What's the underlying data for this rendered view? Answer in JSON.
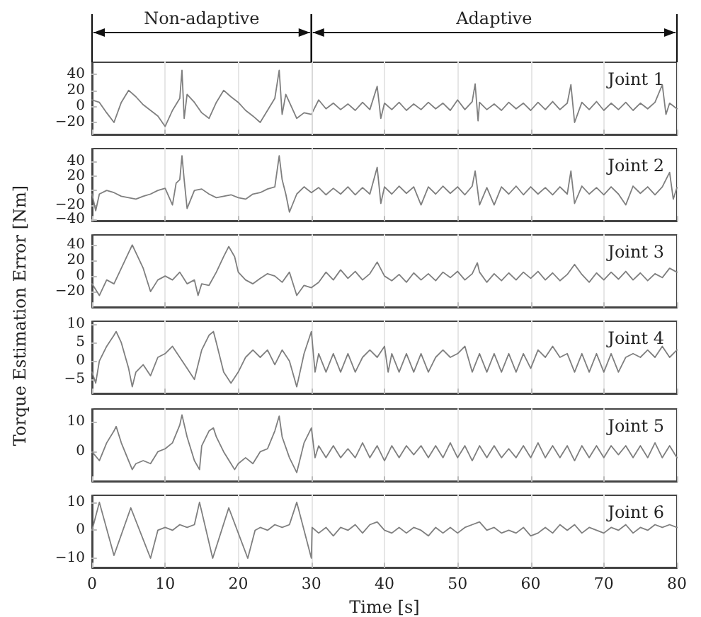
{
  "chart_data": [
    {
      "type": "line",
      "title": "Joint 1",
      "ylabel": "Torque Estimation Error [Nm]",
      "color": "#7f7f7f",
      "marker": "none",
      "grid": "x",
      "tick_labels": "y",
      "xlim": [
        0,
        80
      ],
      "xticks": [
        0,
        10,
        20,
        30,
        40,
        50,
        60,
        70,
        80
      ],
      "ylim": [
        -35,
        55
      ],
      "yticks": [
        -20,
        0,
        20,
        40
      ],
      "annotations": [
        "Non-adaptive",
        "Adaptive"
      ],
      "ref_lines": [
        {
          "axis": "x",
          "value": 30,
          "color": "#d9d9d9"
        }
      ],
      "x": [
        0,
        1,
        2,
        3,
        4,
        5,
        6,
        7,
        8,
        9,
        10,
        11,
        12,
        12.3,
        12.6,
        13,
        14,
        15,
        16,
        17,
        18,
        19,
        20,
        21,
        22,
        23,
        24,
        25,
        25.6,
        26,
        26.5,
        27,
        28,
        29,
        30,
        31,
        32,
        33,
        34,
        35,
        36,
        37,
        38,
        39,
        39.5,
        40,
        41,
        42,
        43,
        44,
        45,
        46,
        47,
        48,
        49,
        50,
        51,
        52,
        52.4,
        52.8,
        53,
        54,
        55,
        56,
        57,
        58,
        59,
        60,
        61,
        62,
        63,
        64,
        65,
        65.5,
        66,
        67,
        68,
        69,
        70,
        71,
        72,
        73,
        74,
        75,
        76,
        77,
        78,
        78.5,
        79,
        80
      ],
      "values": [
        8,
        5,
        -8,
        -20,
        5,
        20,
        12,
        2,
        -5,
        -12,
        -25,
        -5,
        10,
        45,
        -15,
        15,
        5,
        -8,
        -15,
        5,
        20,
        12,
        5,
        -5,
        -12,
        -20,
        -5,
        10,
        45,
        -10,
        15,
        5,
        -15,
        -8,
        -10,
        8,
        -3,
        4,
        -4,
        3,
        -5,
        5,
        -4,
        25,
        -15,
        4,
        -4,
        5,
        -5,
        3,
        -4,
        5,
        -3,
        4,
        -5,
        8,
        -4,
        6,
        28,
        -18,
        5,
        -4,
        3,
        -5,
        5,
        -3,
        4,
        -5,
        5,
        -4,
        6,
        -4,
        4,
        27,
        -20,
        5,
        -4,
        6,
        -5,
        4,
        -4,
        5,
        -5,
        4,
        -3,
        5,
        27,
        -10,
        4,
        -3
      ]
    },
    {
      "type": "line",
      "title": "Joint 2",
      "color": "#7f7f7f",
      "marker": "none",
      "grid": "x",
      "tick_labels": "y",
      "xlim": [
        0,
        80
      ],
      "xticks": [
        0,
        10,
        20,
        30,
        40,
        50,
        60,
        70,
        80
      ],
      "ylim": [
        -42,
        58
      ],
      "yticks": [
        -40,
        -20,
        0,
        20,
        40
      ],
      "x": [
        0,
        0.5,
        1,
        2,
        3,
        4,
        5,
        6,
        7,
        8,
        9,
        10,
        11,
        11.5,
        12,
        12.3,
        12.6,
        13,
        14,
        15,
        16,
        17,
        18,
        19,
        20,
        21,
        22,
        23,
        24,
        25,
        25.6,
        26,
        26.5,
        27,
        28,
        29,
        30,
        31,
        32,
        33,
        34,
        35,
        36,
        37,
        38,
        39,
        39.5,
        40,
        41,
        42,
        43,
        44,
        45,
        46,
        47,
        48,
        49,
        50,
        51,
        52,
        52.4,
        53,
        54,
        55,
        56,
        57,
        58,
        59,
        60,
        61,
        62,
        63,
        64,
        65,
        65.5,
        66,
        67,
        68,
        69,
        70,
        71,
        72,
        73,
        74,
        75,
        76,
        77,
        78,
        79,
        79.5,
        80
      ],
      "values": [
        -5,
        -28,
        -5,
        0,
        -3,
        -8,
        -10,
        -12,
        -8,
        -5,
        0,
        3,
        -20,
        10,
        15,
        48,
        15,
        -25,
        0,
        2,
        -5,
        -10,
        -8,
        -6,
        -10,
        -12,
        -5,
        -3,
        2,
        5,
        48,
        15,
        -5,
        -30,
        -5,
        5,
        -3,
        4,
        -6,
        3,
        -5,
        5,
        -6,
        4,
        -5,
        32,
        -18,
        5,
        -5,
        6,
        -4,
        5,
        -20,
        5,
        -5,
        6,
        -4,
        5,
        -6,
        6,
        27,
        -20,
        4,
        -20,
        5,
        -5,
        6,
        -6,
        5,
        -5,
        4,
        -6,
        5,
        -5,
        27,
        -18,
        6,
        -5,
        4,
        -6,
        5,
        -5,
        -20,
        6,
        -4,
        5,
        -6,
        5,
        25,
        -12,
        4
      ]
    },
    {
      "type": "line",
      "title": "Joint 3",
      "color": "#7f7f7f",
      "marker": "none",
      "grid": "x",
      "tick_labels": "y",
      "xlim": [
        0,
        80
      ],
      "xticks": [
        0,
        10,
        20,
        30,
        40,
        50,
        60,
        70,
        80
      ],
      "ylim": [
        -40,
        53
      ],
      "yticks": [
        -20,
        0,
        20,
        40
      ],
      "x": [
        0,
        1,
        2,
        3,
        4,
        5,
        5.5,
        6,
        7,
        8,
        9,
        10,
        11,
        12,
        13,
        14,
        14.5,
        15,
        16,
        17,
        18,
        18.7,
        19.5,
        20,
        21,
        22,
        23,
        24,
        25,
        26,
        27,
        28,
        29,
        30,
        31,
        32,
        33,
        34,
        35,
        36,
        37,
        38,
        39,
        40,
        41,
        42,
        43,
        44,
        45,
        46,
        47,
        48,
        49,
        50,
        51,
        52,
        52.7,
        53,
        54,
        55,
        56,
        57,
        58,
        59,
        60,
        61,
        62,
        63,
        64,
        65,
        66,
        67,
        68,
        69,
        70,
        71,
        72,
        73,
        74,
        75,
        76,
        77,
        78,
        79,
        80
      ],
      "values": [
        -10,
        -25,
        -5,
        -10,
        10,
        30,
        40,
        30,
        10,
        -20,
        -5,
        0,
        -5,
        5,
        -10,
        -5,
        -25,
        -10,
        -12,
        5,
        25,
        38,
        25,
        5,
        -5,
        -10,
        -3,
        3,
        0,
        -8,
        5,
        -25,
        -12,
        -15,
        -8,
        5,
        -5,
        8,
        -3,
        6,
        -5,
        3,
        18,
        0,
        -6,
        2,
        -8,
        4,
        -5,
        3,
        -6,
        5,
        -2,
        6,
        -5,
        3,
        17,
        5,
        -8,
        3,
        -6,
        4,
        -5,
        5,
        -3,
        6,
        -5,
        4,
        -6,
        2,
        15,
        2,
        -8,
        4,
        -5,
        5,
        -4,
        6,
        -5,
        4,
        -6,
        3,
        -2,
        10,
        5
      ]
    },
    {
      "type": "line",
      "title": "Joint 4",
      "color": "#7f7f7f",
      "marker": "none",
      "grid": "x",
      "tick_labels": "y",
      "xlim": [
        0,
        80
      ],
      "xticks": [
        0,
        10,
        20,
        30,
        40,
        50,
        60,
        70,
        80
      ],
      "ylim": [
        -8.8,
        10.8
      ],
      "yticks": [
        -5,
        0,
        5,
        10
      ],
      "x": [
        0,
        0.5,
        1,
        2,
        3,
        3.3,
        4,
        5,
        5.5,
        6,
        7,
        8,
        9,
        10,
        11,
        12,
        13,
        14,
        15,
        16,
        16.6,
        17,
        18,
        19,
        20,
        21,
        22,
        23,
        24,
        25,
        26,
        27,
        28,
        29,
        30,
        30.5,
        31,
        32,
        33,
        34,
        35,
        36,
        37,
        38,
        39,
        40,
        40.5,
        41,
        42,
        43,
        44,
        45,
        46,
        47,
        48,
        49,
        50,
        51,
        52,
        53,
        54,
        55,
        56,
        57,
        58,
        59,
        60,
        61,
        62,
        63,
        64,
        65,
        66,
        67,
        68,
        69,
        70,
        71,
        72,
        73,
        74,
        75,
        76,
        77,
        78,
        79,
        80
      ],
      "values": [
        -3,
        -6,
        0,
        4,
        7,
        8,
        5,
        -2,
        -7,
        -3,
        -1,
        -4,
        1,
        2,
        4,
        1,
        -2,
        -5,
        3,
        7,
        8,
        5,
        -3,
        -6,
        -3,
        1,
        3,
        1,
        3,
        -1,
        3,
        0,
        -7,
        2,
        8,
        -3,
        2,
        -3,
        2,
        -3,
        2,
        -3,
        1,
        3,
        1,
        4,
        -3,
        2,
        -3,
        2,
        -3,
        2,
        -3,
        1,
        3,
        1,
        2,
        4,
        -3,
        2,
        -3,
        2,
        -3,
        2,
        -3,
        2,
        -2,
        3,
        1,
        4,
        1,
        2,
        -3,
        2,
        -3,
        2,
        -3,
        2,
        -3,
        1,
        2,
        1,
        3,
        1,
        4,
        1,
        3
      ]
    },
    {
      "type": "line",
      "title": "Joint 5",
      "color": "#7f7f7f",
      "marker": "none",
      "grid": "x",
      "tick_labels": "y",
      "xlim": [
        0,
        80
      ],
      "xticks": [
        0,
        10,
        20,
        30,
        40,
        50,
        60,
        70,
        80
      ],
      "ylim": [
        -9.9,
        14.4
      ],
      "yticks": [
        0,
        10
      ],
      "x": [
        0,
        1,
        2,
        3,
        3.3,
        4,
        5,
        5.5,
        6,
        7,
        8,
        9,
        10,
        11,
        12,
        12.3,
        13,
        14,
        14.7,
        15,
        16,
        16.6,
        17,
        18,
        19,
        19.5,
        20,
        21,
        22,
        23,
        24,
        25,
        25.6,
        26,
        27,
        28,
        29,
        30,
        30.5,
        31,
        32,
        33,
        34,
        35,
        36,
        37,
        38,
        39,
        40,
        41,
        42,
        43,
        44,
        45,
        46,
        47,
        48,
        49,
        50,
        51,
        52,
        53,
        54,
        55,
        56,
        57,
        58,
        59,
        60,
        61,
        62,
        63,
        64,
        65,
        66,
        67,
        68,
        69,
        70,
        71,
        72,
        73,
        74,
        75,
        76,
        77,
        78,
        79,
        80
      ],
      "values": [
        0,
        -3,
        3,
        7,
        8.5,
        3,
        -3,
        -6,
        -4,
        -3,
        -4,
        0,
        1,
        3,
        9,
        12.4,
        5,
        -3,
        -6,
        2,
        7,
        8,
        5,
        0,
        -4,
        -6,
        -4,
        -2,
        -4,
        0,
        1,
        7,
        12,
        5,
        -2,
        -7,
        3,
        8,
        -2,
        2,
        -2,
        2,
        -2,
        1,
        -2,
        3,
        -2,
        2,
        -3,
        2,
        -2,
        2,
        -1,
        2,
        -2,
        2,
        -2,
        3,
        -2,
        2,
        -3,
        2,
        -2,
        2,
        -2,
        1,
        -2,
        2,
        -2,
        3,
        -2,
        2,
        -2,
        2,
        -3,
        2,
        -2,
        2,
        -2,
        2,
        -1,
        2,
        -2,
        2,
        -2,
        3,
        -2,
        2,
        -2
      ]
    },
    {
      "type": "line",
      "title": "Joint 6",
      "xlabel": "Time [s]",
      "color": "#7f7f7f",
      "marker": "none",
      "grid": "x",
      "xlim": [
        0,
        80
      ],
      "xticks": [
        0,
        10,
        20,
        30,
        40,
        50,
        60,
        70,
        80
      ],
      "ylim": [
        -13.3,
        12.5
      ],
      "yticks": [
        -10,
        0,
        10
      ],
      "x": [
        0,
        1,
        3,
        5.3,
        8,
        9,
        10,
        11,
        12,
        13,
        14,
        14.7,
        16.5,
        18.7,
        21.3,
        22.3,
        23,
        24,
        25,
        26,
        27,
        28,
        30,
        30.1,
        31,
        32,
        33,
        34,
        35,
        36,
        37,
        38,
        39,
        40,
        41,
        42,
        43,
        44,
        45,
        46,
        47,
        48,
        49,
        50,
        51,
        52,
        53,
        54,
        55,
        56,
        57,
        58,
        59,
        60,
        61,
        62,
        63,
        64,
        65,
        66,
        67,
        68,
        69,
        70,
        71,
        72,
        73,
        74,
        75,
        76,
        77,
        78,
        79,
        80
      ],
      "values": [
        0,
        10,
        -9,
        8,
        -10,
        0,
        1,
        0,
        2,
        1,
        2,
        10,
        -10,
        8,
        -10,
        0,
        1,
        0,
        2,
        1,
        2,
        10,
        -10,
        1,
        -1,
        1,
        -2,
        1,
        0,
        2,
        -1,
        2,
        3,
        0,
        -1,
        1,
        -1,
        1,
        0,
        -2,
        1,
        -1,
        1,
        -1,
        1,
        2,
        3,
        0,
        1,
        -1,
        0,
        -1,
        1,
        -2,
        -1,
        1,
        -1,
        2,
        0,
        2,
        -1,
        1,
        0,
        -1,
        1,
        0,
        2,
        -1,
        1,
        0,
        2,
        1,
        2,
        1
      ]
    }
  ]
}
